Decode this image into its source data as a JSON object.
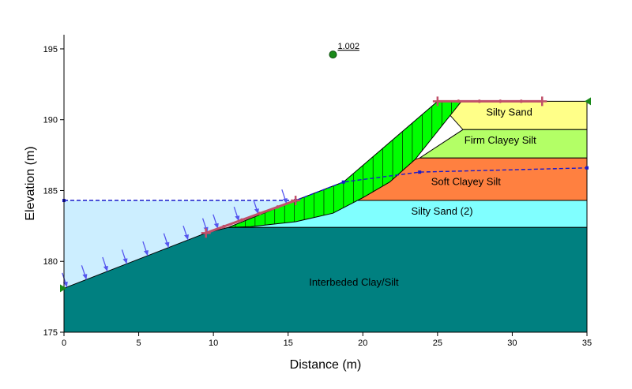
{
  "axes": {
    "xlabel": "Distance (m)",
    "ylabel": "Elevation (m)",
    "xlim": [
      0,
      35
    ],
    "ylim": [
      175,
      196
    ],
    "xticks": [
      "0",
      "5",
      "10",
      "15",
      "20",
      "25",
      "30",
      "35"
    ],
    "yticks": [
      "175",
      "180",
      "185",
      "190",
      "195"
    ]
  },
  "factor_of_safety": {
    "label": "1.002",
    "center": [
      18,
      194.6
    ]
  },
  "layers": [
    {
      "name": "Silty Sand",
      "color": "#ffff88",
      "label_at": [
        29.8,
        190.3
      ],
      "polygon": [
        [
          25,
          191.3
        ],
        [
          35,
          191.3
        ],
        [
          35,
          189.3
        ],
        [
          26.7,
          189.3
        ]
      ]
    },
    {
      "name": "Firm Clayey Silt",
      "color": "#b3ff66",
      "label_at": [
        29.2,
        188.3
      ],
      "polygon": [
        [
          26.7,
          189.3
        ],
        [
          35,
          189.3
        ],
        [
          35,
          187.3
        ],
        [
          23.8,
          187.3
        ]
      ]
    },
    {
      "name": "Soft Clayey Silt",
      "color": "#ff8040",
      "label_at": [
        26.9,
        185.4
      ],
      "polygon": [
        [
          18.7,
          185.6
        ],
        [
          23.8,
          187.3
        ],
        [
          35,
          187.3
        ],
        [
          35,
          184.3
        ],
        [
          15.5,
          184.3
        ]
      ]
    },
    {
      "name": "Silty Sand (2)",
      "color": "#80ffff",
      "label_at": [
        25.3,
        183.3
      ],
      "polygon": [
        [
          11,
          182.4
        ],
        [
          15.5,
          184.3
        ],
        [
          35,
          184.3
        ],
        [
          35,
          182.4
        ]
      ]
    },
    {
      "name": "Interbeded Clay/Silt",
      "color": "#008080",
      "label_at": [
        19.4,
        178.3
      ],
      "polygon": [
        [
          0,
          175
        ],
        [
          35,
          175
        ],
        [
          35,
          182.4
        ],
        [
          11,
          182.4
        ],
        [
          9.5,
          182
        ],
        [
          0,
          178.1
        ]
      ]
    }
  ],
  "water": {
    "color": "#cceeff",
    "ponded_level": 184.3,
    "line_color": "#1a1acc",
    "phreatic": [
      [
        0,
        184.3
      ],
      [
        15.5,
        184.3
      ],
      [
        18.7,
        185.6
      ],
      [
        23.8,
        186.3
      ],
      [
        35,
        186.6
      ]
    ]
  },
  "slip_surface": {
    "fill": "#00ff00",
    "top": [
      [
        9.5,
        182
      ],
      [
        11,
        182.4
      ],
      [
        15.5,
        184.3
      ],
      [
        18.7,
        185.6
      ],
      [
        25,
        191.3
      ],
      [
        26.6,
        191.3
      ]
    ],
    "bottom": [
      [
        26.6,
        191.3
      ],
      [
        23.5,
        187.2
      ],
      [
        21.8,
        185.6
      ],
      [
        20,
        184.5
      ],
      [
        18,
        183.4
      ],
      [
        15.5,
        182.8
      ],
      [
        12.5,
        182.45
      ],
      [
        11,
        182.4
      ],
      [
        9.5,
        182
      ]
    ],
    "slices": 26
  },
  "entry_exit": {
    "color": "#c0506a",
    "entry": [
      [
        9.5,
        182
      ],
      [
        15.5,
        184.3
      ]
    ],
    "exit": [
      [
        25,
        191.3
      ],
      [
        32,
        191.3
      ]
    ]
  },
  "pressure_arrows": {
    "color": "#5555ee",
    "x": [
      0.2,
      1.5,
      2.9,
      4.2,
      5.6,
      7,
      8.3,
      9.6,
      10.3,
      11.7,
      13,
      14.9
    ]
  },
  "boundary_markers": {
    "color": "#1a8a1a",
    "left": [
      0,
      178.1
    ],
    "right": [
      35,
      191.3
    ]
  }
}
